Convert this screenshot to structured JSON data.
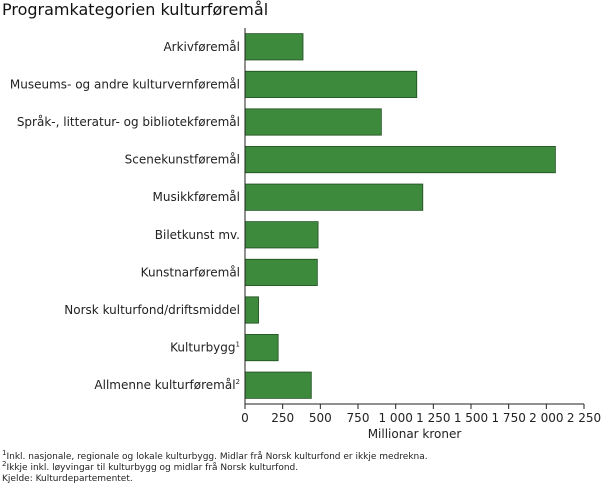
{
  "title": "Programkategorien kulturføremål",
  "chart_data": {
    "type": "bar",
    "orientation": "horizontal",
    "categories": [
      "Arkivføremål",
      "Museums- og andre kulturvernføremål",
      "Språk-, litteratur- og bibliotekføremål",
      "Scenekunstføremål",
      "Musikkføremål",
      "Biletkunst mv.",
      "Kunstnarføremål",
      "Norsk kulturfond/driftsmiddel",
      "Kulturbygg",
      "Allmenne kulturføremål"
    ],
    "category_footnotes": [
      "",
      "",
      "",
      "",
      "",
      "",
      "",
      "",
      "1",
      "2"
    ],
    "values": [
      385,
      1140,
      905,
      2060,
      1180,
      485,
      480,
      90,
      220,
      440
    ],
    "xlabel": "Millionar kroner",
    "xlim": [
      0,
      2250
    ],
    "xticks": [
      0,
      250,
      500,
      750,
      1000,
      1250,
      1500,
      1750,
      2000,
      2250
    ],
    "xtick_labels": [
      "0",
      "250",
      "500",
      "750",
      "1 000",
      "1 250",
      "1 500",
      "1 750",
      "2 000",
      "2 250"
    ],
    "bar_color": "#3d8a3d",
    "bar_edge_color": "#1e4d1e"
  },
  "footnotes": [
    {
      "mark": "1",
      "text": "Inkl. nasjonale, regionale og lokale kulturbygg. Midlar frå Norsk kulturfond er ikkje medrekna."
    },
    {
      "mark": "2",
      "text": "Ikkje inkl. løyvingar til kulturbygg og midlar frå Norsk kulturfond."
    }
  ],
  "source": "Kjelde: Kulturdepartementet."
}
